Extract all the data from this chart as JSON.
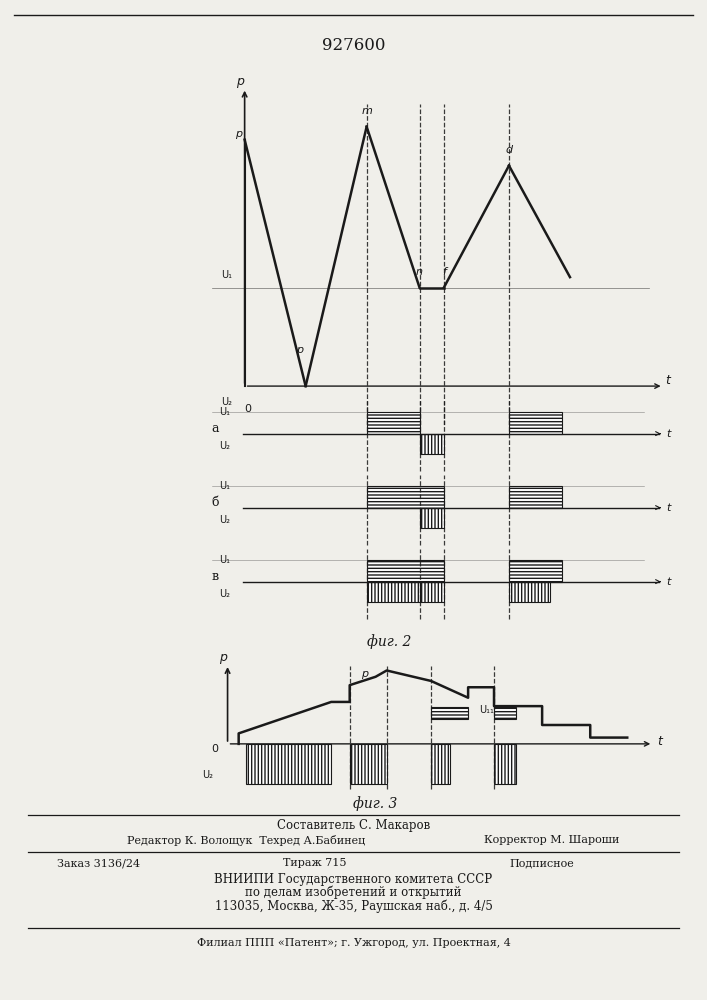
{
  "title": "927600",
  "fig2_label": "фиг. 2",
  "fig3_label": "фиг. 3",
  "footer_line1": "Составитель С. Макаров",
  "footer_line2": "Редактор К. Волощук  Техред А.Бабинец",
  "footer_line2r": "Корректор М. Шароши",
  "footer_line3a": "Заказ 3136/24",
  "footer_line3b": "Тираж 715",
  "footer_line3c": "Подписное",
  "footer_line4": "ВНИИПИ Государственного комитета СССР",
  "footer_line5": "по делам изобретений и открытий",
  "footer_line6": "113035, Москва, Ж-35, Раушская наб., д. 4/5",
  "footer_line7": "Филиал ППП «Патент»; г. Ужгород, ул. Проектная, 4",
  "bg_color": "#f0efea",
  "line_color": "#1a1a1a"
}
